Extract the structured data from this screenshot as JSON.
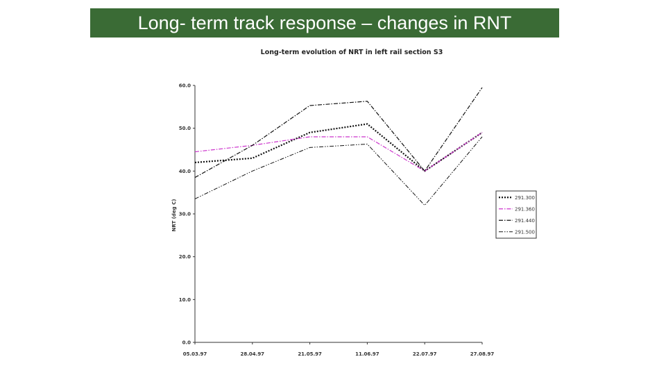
{
  "slide": {
    "title": "Long- term track response – changes in RNT"
  },
  "chart_data": {
    "type": "line",
    "title": "Long-term evolution of NRT in left rail section S3",
    "xlabel": "",
    "ylabel": "NRT (deg C)",
    "categories": [
      "05.03.97",
      "28.04.97",
      "21.05.97",
      "11.06.97",
      "22.07.97",
      "27.08.97"
    ],
    "ylim": [
      0,
      60
    ],
    "yticks": [
      "0.0",
      "10.0",
      "20.0",
      "30.0",
      "40.0",
      "50.0",
      "60.0"
    ],
    "grid": false,
    "legend_position": "right",
    "series": [
      {
        "name": "291.300",
        "values": [
          42,
          43,
          49,
          51,
          40,
          49
        ],
        "color": "#111111",
        "dash": "2,2",
        "width": 2.2
      },
      {
        "name": "291.360",
        "values": [
          44.5,
          46,
          48,
          48,
          40,
          49
        ],
        "color": "#cc33cc",
        "dash": "6,2,1.5,2",
        "width": 1.2
      },
      {
        "name": "291.440",
        "values": [
          38.5,
          46,
          55.3,
          56.3,
          40,
          59.5
        ],
        "color": "#111111",
        "dash": "6,2,1.5,2",
        "width": 1.2
      },
      {
        "name": "291.500",
        "values": [
          33.5,
          40,
          45.5,
          46.3,
          32,
          48
        ],
        "color": "#111111",
        "dash": "6,2,1.5,2,1.5,2",
        "width": 1.0
      }
    ]
  }
}
